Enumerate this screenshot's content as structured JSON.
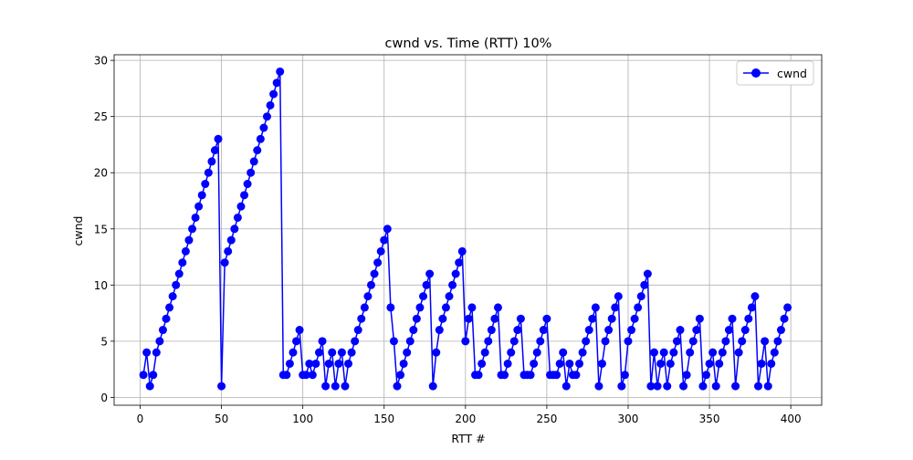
{
  "chart_data": {
    "type": "line",
    "title": "cwnd vs. Time (RTT) 10%",
    "xlabel": "RTT #",
    "ylabel": "cwnd",
    "xlim": [
      -16,
      419
    ],
    "ylim": [
      -0.7,
      30.5
    ],
    "xticks": [
      0,
      50,
      100,
      150,
      200,
      250,
      300,
      350,
      400
    ],
    "yticks": [
      0,
      5,
      10,
      15,
      20,
      25,
      30
    ],
    "grid": true,
    "legend_position": "top-right",
    "series": [
      {
        "name": "cwnd",
        "color": "#0000ff",
        "marker": "circle",
        "x": [
          2,
          4,
          6,
          8,
          10,
          12,
          14,
          16,
          18,
          20,
          22,
          24,
          26,
          28,
          30,
          32,
          34,
          36,
          38,
          40,
          42,
          44,
          46,
          48,
          50,
          52,
          54,
          56,
          58,
          60,
          62,
          64,
          66,
          68,
          70,
          72,
          74,
          76,
          78,
          80,
          82,
          84,
          86,
          88,
          90,
          92,
          94,
          96,
          98,
          100,
          102,
          104,
          106,
          108,
          110,
          112,
          114,
          116,
          118,
          120,
          122,
          124,
          126,
          128,
          130,
          132,
          134,
          136,
          138,
          140,
          142,
          144,
          146,
          148,
          150,
          152,
          154,
          156,
          158,
          160,
          162,
          164,
          166,
          168,
          170,
          172,
          174,
          176,
          178,
          180,
          182,
          184,
          186,
          188,
          190,
          192,
          194,
          196,
          198,
          200,
          202,
          204,
          206,
          208,
          210,
          212,
          214,
          216,
          218,
          220,
          222,
          224,
          226,
          228,
          230,
          232,
          234,
          236,
          238,
          240,
          242,
          244,
          246,
          248,
          250,
          252,
          254,
          256,
          258,
          260,
          262,
          264,
          266,
          268,
          270,
          272,
          274,
          276,
          278,
          280,
          282,
          284,
          286,
          288,
          290,
          292,
          294,
          296,
          298,
          300,
          302,
          304,
          306,
          308,
          310,
          312,
          314,
          316,
          318,
          320,
          322,
          324,
          326,
          328,
          330,
          332,
          334,
          336,
          338,
          340,
          342,
          344,
          346,
          348,
          350,
          352,
          354,
          356,
          358,
          360,
          362,
          364,
          366,
          368,
          370,
          372,
          374,
          376,
          378,
          380,
          382,
          384,
          386,
          388,
          390,
          392,
          394,
          396,
          398
        ],
        "y": [
          2,
          4,
          1,
          2,
          4,
          5,
          6,
          7,
          8,
          9,
          10,
          11,
          12,
          13,
          14,
          15,
          16,
          17,
          18,
          19,
          20,
          21,
          22,
          23,
          1,
          12,
          13,
          14,
          15,
          16,
          17,
          18,
          19,
          20,
          21,
          22,
          23,
          24,
          25,
          26,
          27,
          28,
          29,
          2,
          2,
          3,
          4,
          5,
          6,
          2,
          2,
          3,
          2,
          3,
          4,
          5,
          1,
          3,
          4,
          1,
          3,
          4,
          1,
          3,
          4,
          5,
          6,
          7,
          8,
          9,
          10,
          11,
          12,
          13,
          14,
          15,
          8,
          5,
          1,
          2,
          3,
          4,
          5,
          6,
          7,
          8,
          9,
          10,
          11,
          1,
          4,
          6,
          7,
          8,
          9,
          10,
          11,
          12,
          13,
          5,
          7,
          8,
          2,
          2,
          3,
          4,
          5,
          6,
          7,
          8,
          2,
          2,
          3,
          4,
          5,
          6,
          7,
          2,
          2,
          2,
          3,
          4,
          5,
          6,
          7,
          2,
          2,
          2,
          3,
          4,
          1,
          3,
          2,
          2,
          3,
          4,
          5,
          6,
          7,
          8,
          1,
          3,
          5,
          6,
          7,
          8,
          9,
          1,
          2,
          5,
          6,
          7,
          8,
          9,
          10,
          11,
          1,
          4,
          1,
          3,
          4,
          1,
          3,
          4,
          5,
          6,
          1,
          2,
          4,
          5,
          6,
          7,
          1,
          2,
          3,
          4,
          1,
          3,
          4,
          5,
          6,
          7,
          1,
          4,
          5,
          6,
          7,
          8,
          9,
          1,
          3,
          5,
          1,
          3,
          4,
          5,
          6,
          7,
          8
        ]
      }
    ]
  }
}
